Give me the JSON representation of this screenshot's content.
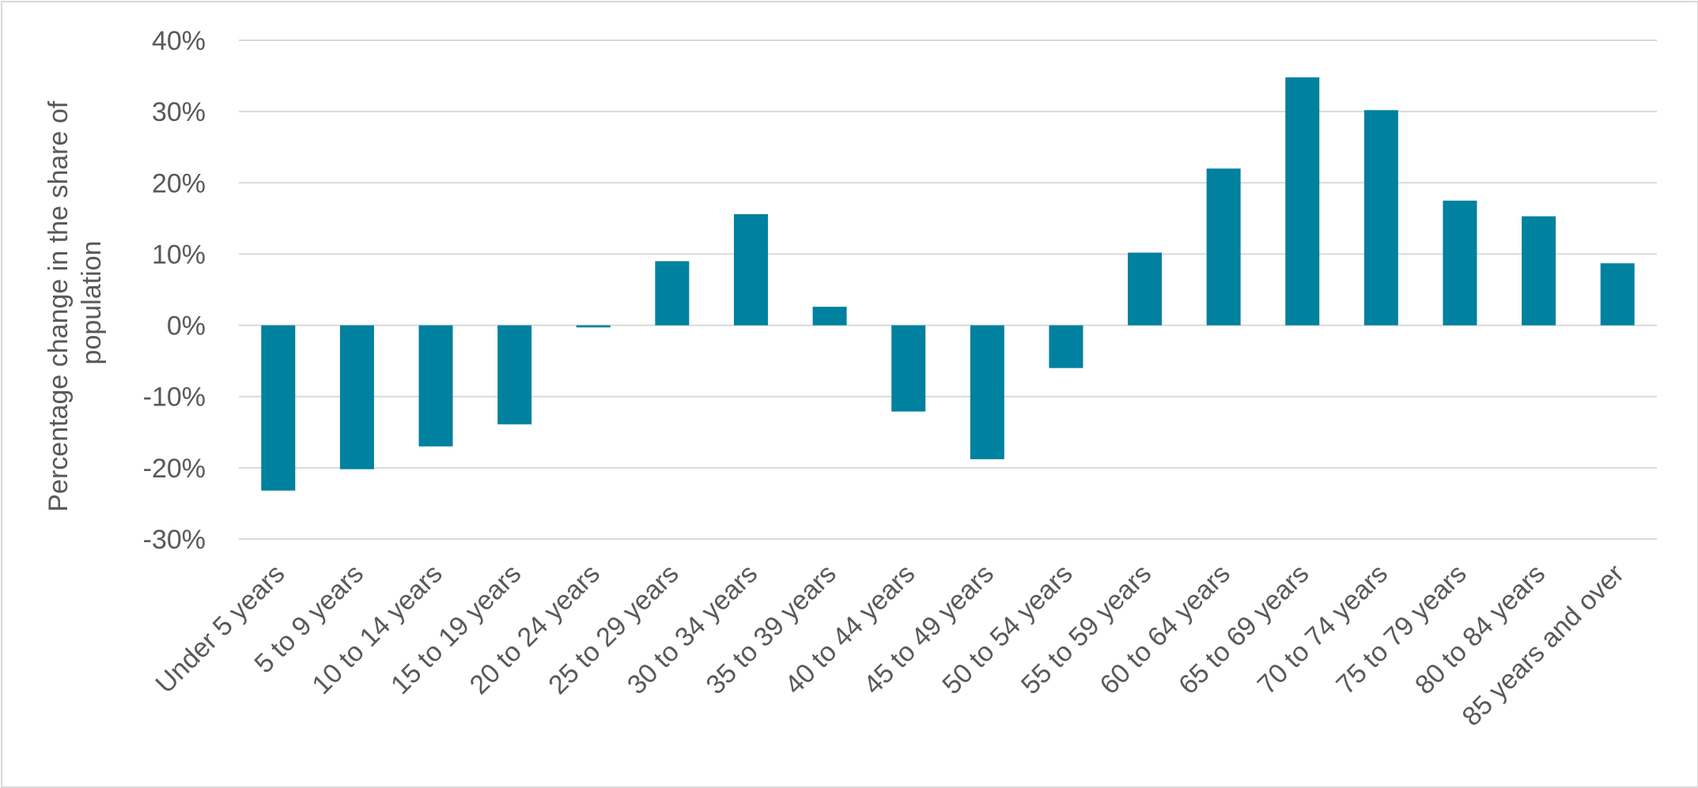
{
  "chart_data": {
    "type": "bar",
    "title": "",
    "xlabel": "",
    "ylabel": [
      "Percentage change in the share of",
      "population"
    ],
    "ylim": [
      -30,
      40
    ],
    "yticks": [
      40,
      30,
      20,
      10,
      0,
      -10,
      -20,
      -30
    ],
    "ytick_labels": [
      "40%",
      "30%",
      "20%",
      "10%",
      "0%",
      "-10%",
      "-20%",
      "-30%"
    ],
    "grid": true,
    "legend": "none",
    "bar_color": "#00819F",
    "grid_color": "#D9D9D9",
    "categories": [
      "Under 5 years",
      "5 to 9 years",
      "10 to 14 years",
      "15 to 19 years",
      "20 to 24 years",
      "25 to 29 years",
      "30 to 34 years",
      "35 to 39 years",
      "40 to 44 years",
      "45 to 49 years",
      "50 to 54 years",
      "55 to 59 years",
      "60 to 64 years",
      "65 to 69 years",
      "70 to 74 years",
      "75 to 79 years",
      "80 to 84 years",
      "85 years and over"
    ],
    "values": [
      -23.2,
      -20.2,
      -17.0,
      -13.9,
      -0.3,
      9.0,
      15.6,
      2.6,
      -12.1,
      -18.8,
      -6.0,
      10.2,
      22.0,
      34.8,
      30.2,
      17.5,
      15.3,
      8.7
    ]
  }
}
